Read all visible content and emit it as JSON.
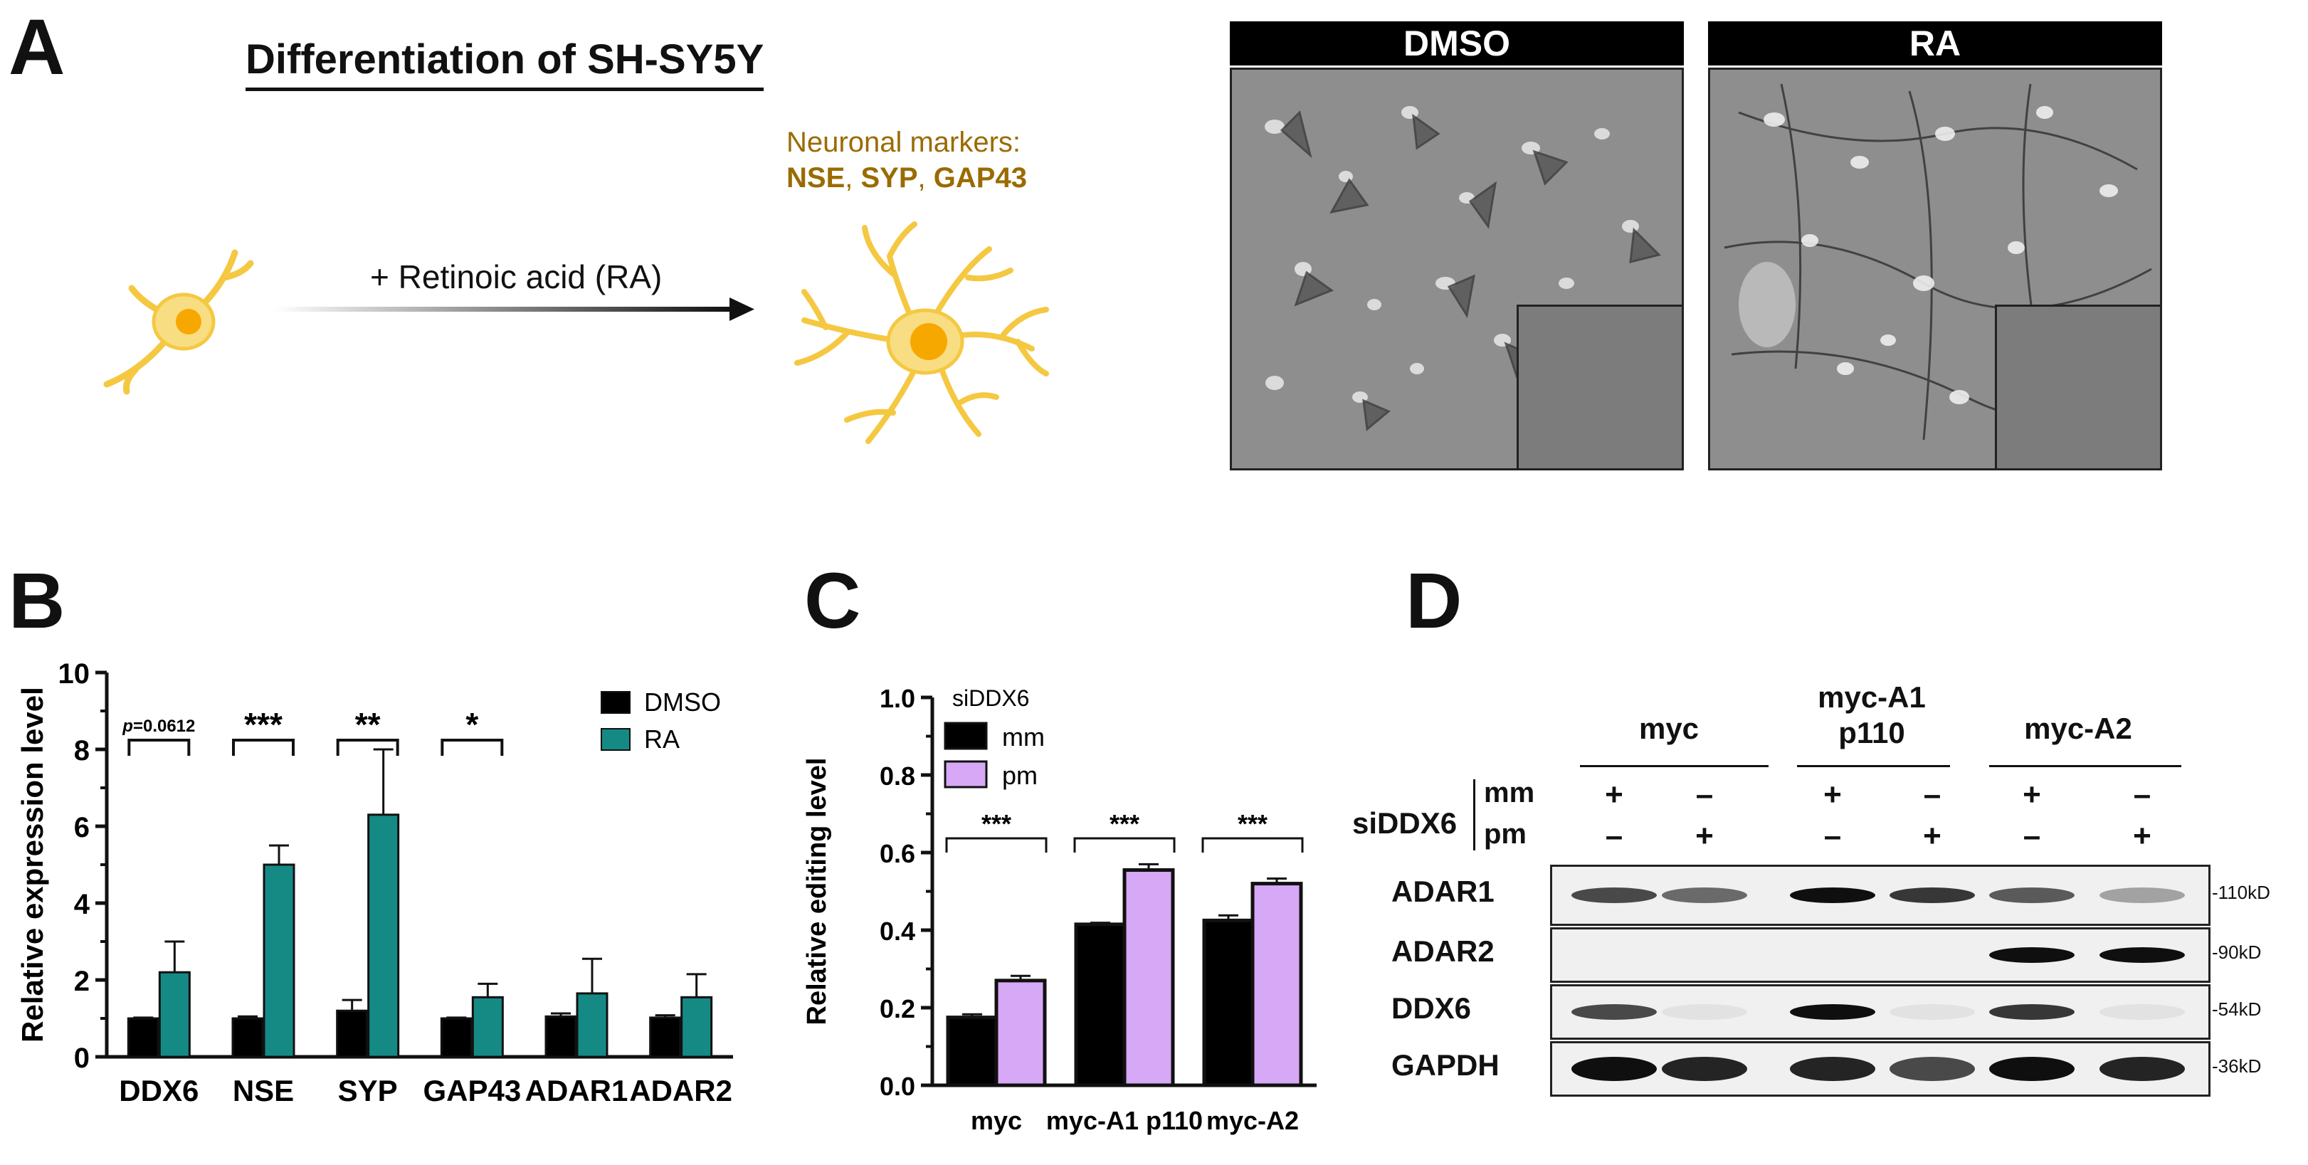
{
  "panels": {
    "a": "A",
    "b": "B",
    "c": "C",
    "d": "D"
  },
  "panel_a": {
    "title": "Differentiation of SH-SY5Y",
    "arrow_label": "+ Retinoic acid (RA)",
    "markers_heading": "Neuronal markers:",
    "markers": [
      "NSE",
      "SYP",
      "GAP43"
    ],
    "marker_sep": ", ",
    "micro_dmso_label": "DMSO",
    "micro_ra_label": "RA",
    "cell_color": "#f5c842",
    "nucleus_color": "#f7a800",
    "marker_color": "#9a6b00"
  },
  "chart_data": [
    {
      "type": "bar",
      "panel": "B",
      "categories": [
        "DDX6",
        "NSE",
        "SYP",
        "GAP43",
        "ADAR1",
        "ADAR2"
      ],
      "ylabel": "Relative expression level",
      "ylim": [
        0,
        10
      ],
      "yticks": [
        "0",
        "2",
        "4",
        "6",
        "8",
        "10"
      ],
      "series": [
        {
          "name": "DMSO",
          "values": [
            1.0,
            1.0,
            1.2,
            1.0,
            1.05,
            1.02
          ],
          "errors": [
            0.02,
            0.05,
            0.28,
            0.02,
            0.08,
            0.06
          ],
          "color": "#000000"
        },
        {
          "name": "RA",
          "values": [
            2.2,
            5.0,
            6.3,
            1.55,
            1.65,
            1.55
          ],
          "errors": [
            0.8,
            0.5,
            1.7,
            0.35,
            0.9,
            0.6
          ],
          "color": "#158a85"
        }
      ],
      "significance": [
        "p=0.0612",
        "***",
        "**",
        "*",
        "",
        ""
      ],
      "legend_position": "top-right"
    },
    {
      "type": "bar",
      "panel": "C",
      "categories": [
        "myc",
        "myc-A1 p110",
        "myc-A2"
      ],
      "ylabel": "Relative editing level",
      "ylim": [
        0,
        1.0
      ],
      "yticks": [
        "0.0",
        "0.2",
        "0.4",
        "0.6",
        "0.8",
        "1.0"
      ],
      "legend_title": "siDDX6",
      "series": [
        {
          "name": "mm",
          "values": [
            0.175,
            0.415,
            0.425
          ],
          "errors": [
            0.008,
            0.004,
            0.013
          ],
          "color": "#000000"
        },
        {
          "name": "pm",
          "values": [
            0.27,
            0.555,
            0.52
          ],
          "errors": [
            0.012,
            0.015,
            0.013
          ],
          "color": "#d6a8f5"
        }
      ],
      "significance": [
        "***",
        "***",
        "***"
      ],
      "legend_position": "top-left"
    }
  ],
  "panel_d": {
    "groups": [
      "myc",
      "myc-A1\np110",
      "myc-A2"
    ],
    "sidda_label": "siDDX6",
    "mm_label": "mm",
    "pm_label": "pm",
    "mm_signs": [
      "+",
      "–",
      "+",
      "–",
      "+",
      "–"
    ],
    "pm_signs": [
      "–",
      "+",
      "–",
      "+",
      "–",
      "+"
    ],
    "blots": [
      {
        "name": "ADAR1",
        "kd": "110kD",
        "intensity": [
          0.85,
          0.75,
          1.0,
          0.9,
          0.8,
          0.55
        ]
      },
      {
        "name": "ADAR2",
        "kd": "90kD",
        "intensity": [
          0.0,
          0.0,
          0.0,
          0.0,
          1.0,
          1.0
        ]
      },
      {
        "name": "DDX6",
        "kd": "54kD",
        "intensity": [
          0.85,
          0.1,
          1.0,
          0.08,
          0.9,
          0.08
        ]
      },
      {
        "name": "GAPDH",
        "kd": "36kD",
        "intensity": [
          1.0,
          0.95,
          0.95,
          0.85,
          1.0,
          0.95
        ]
      }
    ]
  }
}
